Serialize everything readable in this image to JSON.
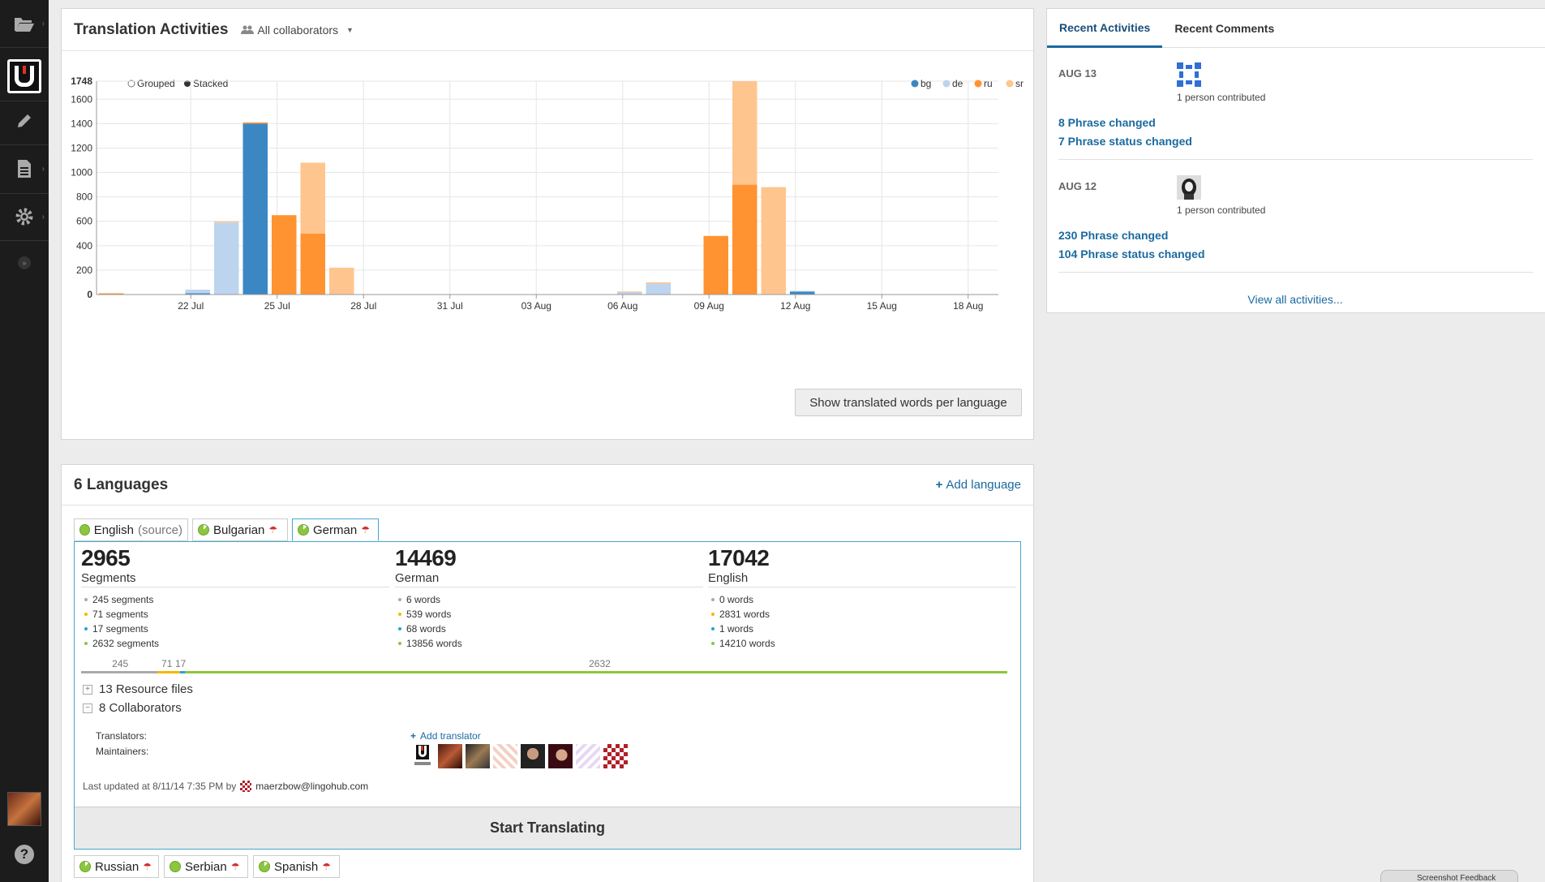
{
  "sidebar": {
    "icons": [
      "folder-icon",
      "lingohub-logo",
      "pencil-icon",
      "document-icon",
      "gear-icon",
      "collapse-icon"
    ],
    "help_label": "?"
  },
  "activities_chart": {
    "title": "Translation Activities",
    "filter_label": "All collaborators",
    "mode_grouped": "Grouped",
    "mode_stacked": "Stacked",
    "button_label": "Show translated words per language"
  },
  "chart_data": {
    "type": "bar",
    "stacked": true,
    "x_tick_labels": [
      "22 Jul",
      "25 Jul",
      "28 Jul",
      "31 Jul",
      "03 Aug",
      "06 Aug",
      "09 Aug",
      "12 Aug",
      "15 Aug",
      "18 Aug"
    ],
    "y_ticks": [
      0,
      200,
      400,
      600,
      800,
      1000,
      1200,
      1400,
      1600,
      1748
    ],
    "ylim": [
      0,
      1748
    ],
    "legend_position": "top-right",
    "grid": true,
    "legend": [
      "bg",
      "de",
      "ru",
      "sr"
    ],
    "colors": {
      "bg": "#3b87c4",
      "de": "#bcd4ee",
      "ru": "#ff9331",
      "sr": "#ffc58f"
    },
    "bars": [
      {
        "day": 0,
        "bg": 0,
        "de": 0,
        "ru": 10,
        "sr": 0
      },
      {
        "day": 3,
        "bg": 10,
        "de": 30,
        "ru": 0,
        "sr": 0
      },
      {
        "day": 4,
        "bg": 0,
        "de": 590,
        "ru": 0,
        "sr": 10
      },
      {
        "day": 5,
        "bg": 1400,
        "de": 0,
        "ru": 10,
        "sr": 0
      },
      {
        "day": 6,
        "bg": 0,
        "de": 0,
        "ru": 650,
        "sr": 0
      },
      {
        "day": 7,
        "bg": 0,
        "de": 0,
        "ru": 500,
        "sr": 580
      },
      {
        "day": 8,
        "bg": 0,
        "de": 0,
        "ru": 0,
        "sr": 220
      },
      {
        "day": 18,
        "bg": 0,
        "de": 20,
        "ru": 0,
        "sr": 5
      },
      {
        "day": 19,
        "bg": 0,
        "de": 90,
        "ru": 0,
        "sr": 10
      },
      {
        "day": 21,
        "bg": 0,
        "de": 0,
        "ru": 480,
        "sr": 0
      },
      {
        "day": 22,
        "bg": 0,
        "de": 0,
        "ru": 900,
        "sr": 848
      },
      {
        "day": 23,
        "bg": 0,
        "de": 0,
        "ru": 0,
        "sr": 880
      },
      {
        "day": 24,
        "bg": 25,
        "de": 5,
        "ru": 0,
        "sr": 0
      }
    ]
  },
  "activity_panel": {
    "tabs": [
      "Recent Activities",
      "Recent Comments"
    ],
    "entries": [
      {
        "date": "AUG 13",
        "contrib": "1 person contributed",
        "links": [
          "8 Phrase changed",
          "7 Phrase status changed"
        ]
      },
      {
        "date": "AUG 12",
        "contrib": "1 person contributed",
        "links": [
          "230 Phrase changed",
          "104 Phrase status changed"
        ]
      }
    ],
    "view_all": "View all activities..."
  },
  "languages": {
    "title": "6 Languages",
    "add_label": "Add language",
    "tabs": [
      {
        "name": "English",
        "suffix": "(source)"
      },
      {
        "name": "Bulgarian"
      },
      {
        "name": "German"
      }
    ],
    "bottom_tabs": [
      "Russian",
      "Serbian",
      "Spanish"
    ],
    "stats": [
      {
        "value": "2965",
        "label": "Segments",
        "items": [
          "245 segments",
          "71 segments",
          "17 segments",
          "2632 segments"
        ]
      },
      {
        "value": "14469",
        "label": "German",
        "items": [
          "6 words",
          "539 words",
          "68 words",
          "13856 words"
        ]
      },
      {
        "value": "17042",
        "label": "English",
        "items": [
          "0 words",
          "2831 words",
          "1 words",
          "14210 words"
        ]
      }
    ],
    "status_colors": [
      "#aaaaaa",
      "#f5b800",
      "#1ea5e0",
      "#8cc63f"
    ],
    "progress": {
      "labels": [
        "245",
        "71",
        "17",
        "2632"
      ],
      "values": [
        245,
        71,
        17,
        2632
      ]
    },
    "resource_files": "13 Resource files",
    "collaborators": "8 Collaborators",
    "translators_label": "Translators:",
    "maintainers_label": "Maintainers:",
    "add_translator": "Add translator",
    "last_updated": "Last updated at 8/11/14 7:35 PM by",
    "updated_by": "maerzbow@lingohub.com",
    "start_button": "Start Translating"
  },
  "feedback_label": "Screenshot Feedback"
}
